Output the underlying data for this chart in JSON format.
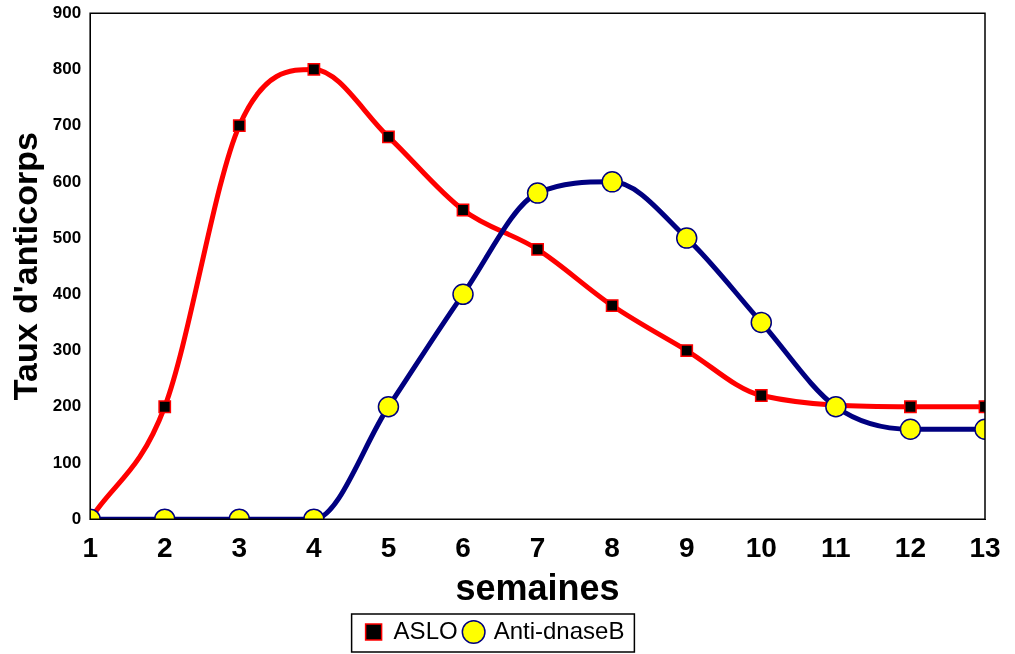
{
  "chart_data": {
    "type": "line",
    "xlabel": "semaines",
    "ylabel": "Taux d'anticorps",
    "x": [
      1,
      2,
      3,
      4,
      5,
      6,
      7,
      8,
      9,
      10,
      11,
      12,
      13
    ],
    "xlim": [
      1,
      13
    ],
    "xticks": [
      1,
      2,
      3,
      4,
      5,
      6,
      7,
      8,
      9,
      10,
      11,
      12,
      13
    ],
    "ylim": [
      0,
      900
    ],
    "yticks": [
      0,
      100,
      200,
      300,
      400,
      500,
      600,
      700,
      800,
      900
    ],
    "grid": false,
    "legend": "bottom",
    "line_style": "solid",
    "series": [
      {
        "name": "ASLO",
        "color": "#ff0000",
        "marker": "square",
        "values": [
          0,
          200,
          700,
          800,
          680,
          550,
          480,
          380,
          300,
          220,
          null,
          200,
          200
        ]
      },
      {
        "name": "Anti-dnaseB",
        "color": "#000080",
        "marker": "circle",
        "values": [
          0,
          0,
          0,
          0,
          200,
          400,
          580,
          600,
          500,
          350,
          200,
          160,
          160
        ]
      }
    ]
  }
}
